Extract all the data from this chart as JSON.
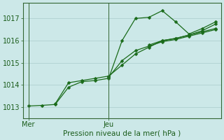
{
  "bg_color": "#cce8e8",
  "grid_color": "#aacccc",
  "line_color": "#1a6b1a",
  "axis_color": "#336633",
  "text_color": "#1a5c1a",
  "title": "Pression niveau de la mer( hPa )",
  "xlabel_mer": "Mer",
  "xlabel_jeu": "Jeu",
  "ylim": [
    1012.5,
    1017.7
  ],
  "yticks": [
    1013,
    1014,
    1015,
    1016,
    1017
  ],
  "series1_x": [
    0.0,
    0.5,
    1.0,
    1.5,
    2.0,
    2.5,
    3.0,
    3.5,
    4.0,
    4.5,
    5.0,
    5.5,
    6.0,
    6.5,
    7.0
  ],
  "series1_y": [
    1013.05,
    1013.08,
    1013.12,
    1013.9,
    1014.15,
    1014.2,
    1014.3,
    1016.0,
    1017.0,
    1017.05,
    1017.35,
    1016.85,
    1016.3,
    1016.55,
    1016.85
  ],
  "series2_x": [
    1.0,
    1.5,
    2.0,
    2.5,
    3.0,
    3.5,
    4.0,
    4.5,
    5.0,
    5.5,
    6.0,
    6.5,
    7.0
  ],
  "series2_y": [
    1013.15,
    1014.1,
    1014.2,
    1014.3,
    1014.4,
    1014.9,
    1015.4,
    1015.7,
    1016.0,
    1016.1,
    1016.25,
    1016.4,
    1016.55
  ],
  "series3_x": [
    3.0,
    3.5,
    4.0,
    4.5,
    5.0,
    5.5,
    6.0,
    6.5,
    7.0
  ],
  "series3_y": [
    1014.35,
    1015.1,
    1015.55,
    1015.75,
    1015.95,
    1016.05,
    1016.2,
    1016.35,
    1016.5
  ],
  "series4_x": [
    4.5,
    5.0,
    5.5,
    6.0,
    6.5,
    7.0
  ],
  "series4_y": [
    1015.8,
    1016.0,
    1016.1,
    1016.25,
    1016.45,
    1016.75
  ],
  "mer_x": 0.0,
  "jeu_x": 3.0,
  "xlim": [
    -0.2,
    7.2
  ],
  "fontsize_ticks": 7,
  "fontsize_label": 7.5
}
